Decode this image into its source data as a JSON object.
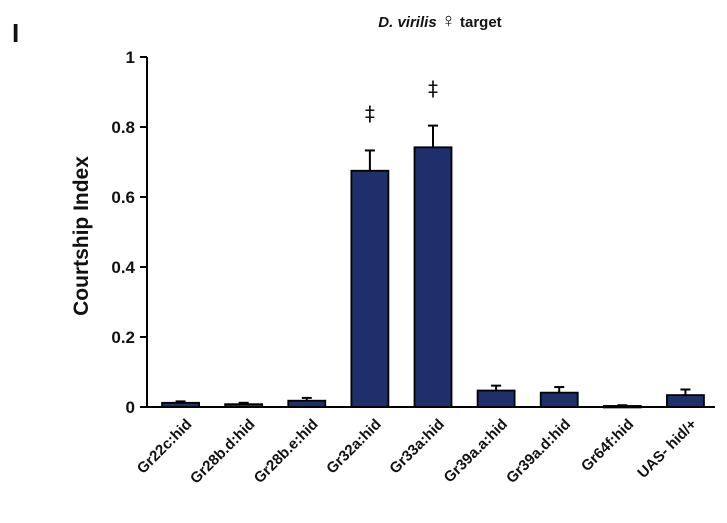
{
  "panel_label": "I",
  "title_species": "D. virilis",
  "title_symbol": "♀",
  "title_rest": "target",
  "chart_data": {
    "type": "bar",
    "ylabel": "Courtship Index",
    "xlabel": "",
    "ylim": [
      0,
      1
    ],
    "yticks": [
      "0",
      "0.2",
      "0.4",
      "0.6",
      "0.8",
      "1"
    ],
    "categories": [
      "Gr22c:hid",
      "Gr28b.d:hid",
      "Gr28b.e:hid",
      "Gr32a:hid",
      "Gr33a:hid",
      "Gr39a.a:hid",
      "Gr39a.d:hid",
      "Gr64f:hid",
      "UAS- hid/+"
    ],
    "values": [
      0.012,
      0.008,
      0.018,
      0.675,
      0.742,
      0.047,
      0.041,
      0.003,
      0.034
    ],
    "errors": [
      0.004,
      0.004,
      0.008,
      0.058,
      0.062,
      0.014,
      0.016,
      0.002,
      0.016
    ],
    "annotations": [
      "",
      "",
      "",
      "‡",
      "‡",
      "",
      "",
      "",
      ""
    ],
    "bar_color": "#1f2f6b",
    "grid": false,
    "legend": "none"
  }
}
